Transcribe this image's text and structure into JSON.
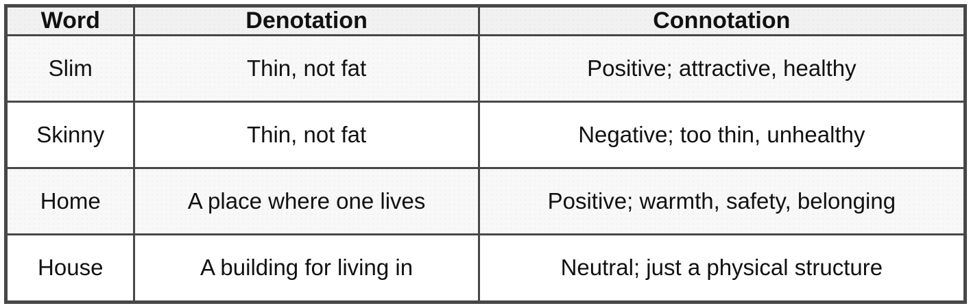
{
  "table": {
    "columns": [
      {
        "label": "Word"
      },
      {
        "label": "Denotation"
      },
      {
        "label": "Connotation"
      }
    ],
    "rows": [
      {
        "word": "Slim",
        "denotation": "Thin, not fat",
        "connotation": "Positive; attractive, healthy"
      },
      {
        "word": "Skinny",
        "denotation": "Thin, not fat",
        "connotation": "Negative; too thin, unhealthy"
      },
      {
        "word": "Home",
        "denotation": "A place where one lives",
        "connotation": "Positive; warmth, safety, belonging"
      },
      {
        "word": "House",
        "denotation": "A building for living in",
        "connotation": "Neutral; just a physical structure"
      }
    ],
    "colors": {
      "border": "#474747",
      "header_bg": "#f1f1f1",
      "stripe_row_bg": "#f8f8f8",
      "plain_row_bg": "#ffffff",
      "text": "#111111"
    }
  }
}
